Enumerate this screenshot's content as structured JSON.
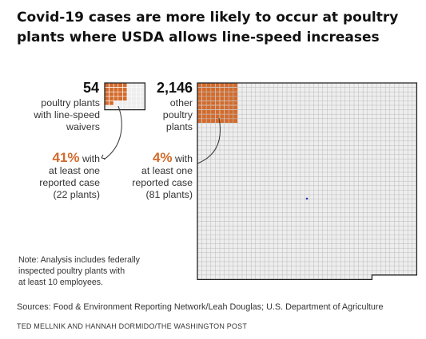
{
  "title": "Covid-19 cases are more likely to occur at poultry plants where USDA allows line-speed increases",
  "chart_data": [
    {
      "type": "waffle",
      "total": 54,
      "total_label": "54",
      "label_lines": [
        "poultry plants",
        "with line-speed",
        "waivers"
      ],
      "highlighted": 22,
      "percent_label": "41%",
      "percent_suffix": " with",
      "case_lines": [
        "at least one",
        "reported case",
        "(22 plants)"
      ]
    },
    {
      "type": "waffle",
      "total": 2146,
      "total_label": "2,146",
      "label_lines": [
        "other",
        "poultry",
        "plants"
      ],
      "highlighted": 81,
      "percent_label": "4%",
      "percent_suffix": " with",
      "case_lines": [
        "at least one",
        "reported case",
        "(81 plants)"
      ]
    }
  ],
  "note_lines": [
    "Note: Analysis includes federally",
    "inspected poultry plants with",
    "at least 10 employees."
  ],
  "sources": "Sources: Food & Environment Reporting Network/Leah Douglas; U.S. Department of Agriculture",
  "credit": "TED MELLNIK AND HANNAH DORMIDO/THE WASHINGTON POST",
  "colors": {
    "highlight": "#d36b2c",
    "cell": "#eeeeee",
    "grid": "#b9b9b9",
    "outline": "#222222",
    "pct_text": "#d36b2c"
  }
}
